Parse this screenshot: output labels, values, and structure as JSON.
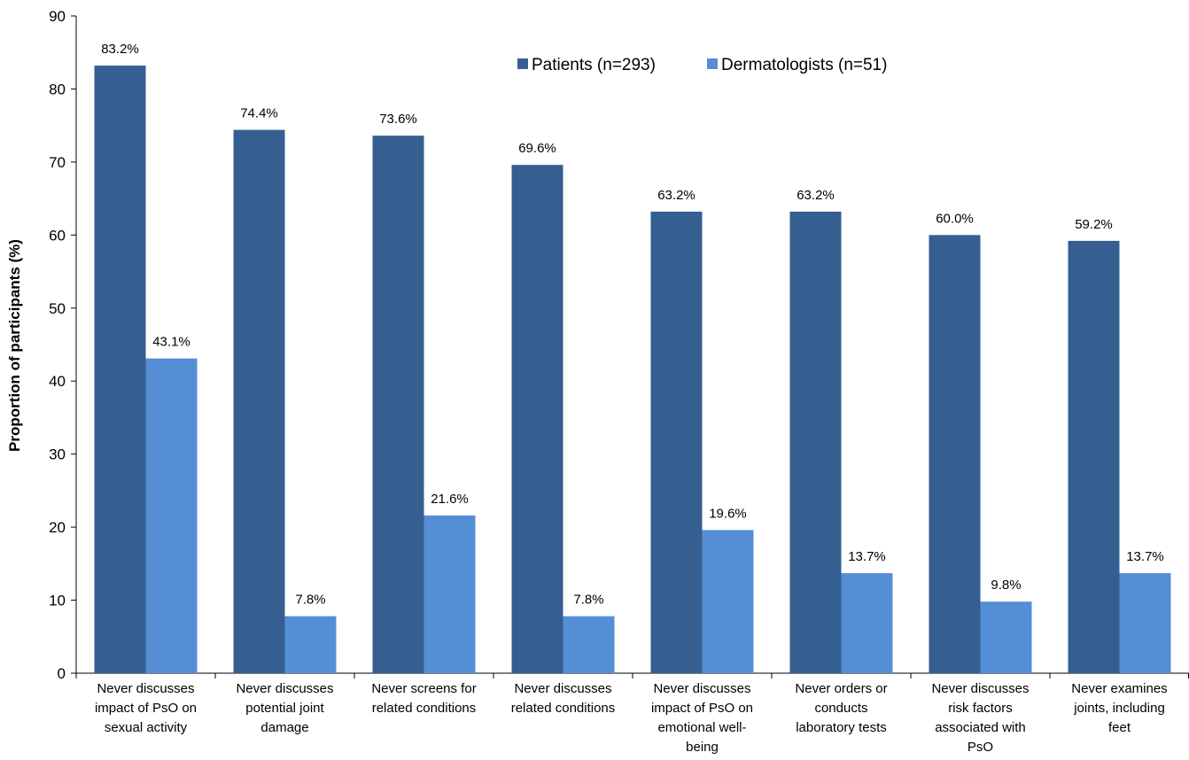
{
  "chart_data": {
    "type": "bar",
    "ylabel": "Proportion of participants (%)",
    "xlabel": "",
    "ylim": [
      0,
      90
    ],
    "yticks": [
      0,
      10,
      20,
      30,
      40,
      50,
      60,
      70,
      80,
      90
    ],
    "legend_position": "top-right",
    "categories": [
      [
        "Never discusses",
        "impact of PsO on",
        "sexual activity"
      ],
      [
        "Never discusses",
        "potential joint",
        "damage"
      ],
      [
        "Never screens for",
        "related conditions"
      ],
      [
        "Never discusses",
        "related conditions"
      ],
      [
        "Never discusses",
        "impact of PsO on",
        "emotional well-",
        "being"
      ],
      [
        "Never orders or",
        "conducts",
        "laboratory tests"
      ],
      [
        "Never discusses",
        "risk factors",
        "associated with",
        "PsO"
      ],
      [
        "Never examines",
        "joints, including",
        "feet"
      ]
    ],
    "series": [
      {
        "name": "Patients (n=293)",
        "color": "#355F91",
        "values": [
          83.2,
          74.4,
          73.6,
          69.6,
          63.2,
          63.2,
          60.0,
          59.2
        ],
        "labels": [
          "83.2%",
          "74.4%",
          "73.6%",
          "69.6%",
          "63.2%",
          "63.2%",
          "60.0%",
          "59.2%"
        ]
      },
      {
        "name": "Dermatologists (n=51)",
        "color": "#558ED5",
        "values": [
          43.1,
          7.8,
          21.6,
          7.8,
          19.6,
          13.7,
          9.8,
          13.7
        ],
        "labels": [
          "43.1%",
          "7.8%",
          "21.6%",
          "7.8%",
          "19.6%",
          "13.7%",
          "9.8%",
          "13.7%"
        ]
      }
    ]
  }
}
